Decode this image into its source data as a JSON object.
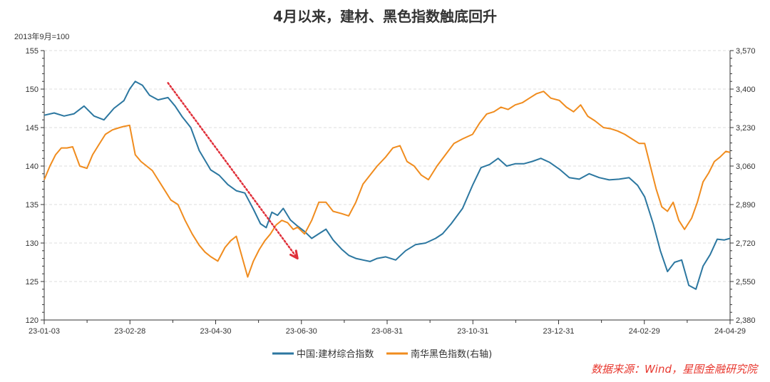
{
  "chart_data": {
    "type": "line",
    "title": "4月以来，建材、黑色指数触底回升",
    "left_axis_unit": "2013年9月=100",
    "source": "数据来源：Wind，星图金融研究院",
    "x_ticks": [
      "23-01-03",
      "23-02-28",
      "23-04-30",
      "23-06-30",
      "23-08-31",
      "23-10-31",
      "23-12-31",
      "24-02-29",
      "24-04-29"
    ],
    "y_left": {
      "min": 120,
      "max": 155,
      "ticks": [
        120,
        125,
        130,
        135,
        140,
        145,
        150,
        155
      ]
    },
    "y_right": {
      "min": 2380,
      "max": 3570,
      "ticks": [
        "2,380",
        "2,550",
        "2,720",
        "2,890",
        "3,060",
        "3,230",
        "3,400",
        "3,570"
      ]
    },
    "grid": "horizontal-dashed",
    "legend_position": "bottom",
    "arrow_annotation": {
      "color": "#e0303a",
      "style": "dotted",
      "from": [
        "2023-03-31",
        150.8
      ],
      "to": [
        "2023-06-30",
        128.0
      ]
    },
    "series": [
      {
        "name": "中国:建材综合指数",
        "axis": "left",
        "color": "#2c77a0",
        "dates": [
          "2023-01-03",
          "2023-01-10",
          "2023-01-17",
          "2023-01-24",
          "2023-01-31",
          "2023-02-07",
          "2023-02-14",
          "2023-02-21",
          "2023-02-28",
          "2023-03-04",
          "2023-03-08",
          "2023-03-13",
          "2023-03-18",
          "2023-03-24",
          "2023-03-31",
          "2023-04-05",
          "2023-04-10",
          "2023-04-16",
          "2023-04-22",
          "2023-04-30",
          "2023-05-06",
          "2023-05-12",
          "2023-05-18",
          "2023-05-24",
          "2023-05-30",
          "2023-06-04",
          "2023-06-08",
          "2023-06-12",
          "2023-06-16",
          "2023-06-20",
          "2023-06-25",
          "2023-06-30",
          "2023-07-05",
          "2023-07-10",
          "2023-07-15",
          "2023-07-20",
          "2023-07-25",
          "2023-07-31",
          "2023-08-05",
          "2023-08-10",
          "2023-08-15",
          "2023-08-20",
          "2023-08-25",
          "2023-08-31",
          "2023-09-07",
          "2023-09-14",
          "2023-09-21",
          "2023-09-28",
          "2023-10-05",
          "2023-10-10",
          "2023-10-16",
          "2023-10-24",
          "2023-10-31",
          "2023-11-06",
          "2023-11-12",
          "2023-11-18",
          "2023-11-24",
          "2023-11-30",
          "2023-12-06",
          "2023-12-12",
          "2023-12-18",
          "2023-12-24",
          "2023-12-31",
          "2024-01-07",
          "2024-01-14",
          "2024-01-21",
          "2024-01-28",
          "2024-02-04",
          "2024-02-11",
          "2024-02-18",
          "2024-02-24",
          "2024-02-29",
          "2024-03-06",
          "2024-03-11",
          "2024-03-16",
          "2024-03-21",
          "2024-03-26",
          "2024-03-31",
          "2024-04-05",
          "2024-04-10",
          "2024-04-15",
          "2024-04-20",
          "2024-04-25",
          "2024-04-29"
        ],
        "values": [
          146.6,
          146.9,
          146.5,
          146.8,
          147.8,
          146.5,
          146.0,
          147.5,
          148.5,
          150.0,
          151.0,
          150.5,
          149.2,
          148.6,
          148.9,
          147.8,
          146.4,
          145.0,
          142.0,
          139.5,
          138.8,
          137.6,
          136.8,
          136.5,
          134.4,
          132.5,
          132.0,
          134.0,
          133.6,
          134.5,
          133.0,
          132.2,
          131.5,
          130.6,
          131.2,
          131.8,
          130.4,
          129.2,
          128.4,
          128.0,
          127.8,
          127.6,
          128.0,
          128.2,
          127.8,
          129.0,
          129.8,
          130.0,
          130.6,
          131.2,
          132.5,
          134.5,
          137.5,
          139.8,
          140.2,
          141.0,
          140.0,
          140.3,
          140.3,
          140.6,
          141.0,
          140.5,
          139.6,
          138.5,
          138.3,
          139.0,
          138.5,
          138.2,
          138.3,
          138.5,
          137.5,
          136.0,
          132.5,
          129.0,
          126.3,
          127.5,
          127.8,
          124.5,
          124.0,
          127.0,
          128.5,
          130.5,
          130.4,
          130.6
        ]
      },
      {
        "name": "南华黑色指数(右轴)",
        "axis": "right",
        "color": "#f08c1e",
        "dates": [
          "2023-01-03",
          "2023-01-07",
          "2023-01-11",
          "2023-01-15",
          "2023-01-19",
          "2023-01-23",
          "2023-01-28",
          "2023-02-02",
          "2023-02-06",
          "2023-02-10",
          "2023-02-15",
          "2023-02-20",
          "2023-02-25",
          "2023-02-28",
          "2023-03-04",
          "2023-03-08",
          "2023-03-12",
          "2023-03-16",
          "2023-03-20",
          "2023-03-24",
          "2023-03-28",
          "2023-04-02",
          "2023-04-07",
          "2023-04-12",
          "2023-04-17",
          "2023-04-22",
          "2023-04-26",
          "2023-04-30",
          "2023-05-05",
          "2023-05-10",
          "2023-05-14",
          "2023-05-18",
          "2023-05-22",
          "2023-05-26",
          "2023-05-30",
          "2023-06-03",
          "2023-06-07",
          "2023-06-11",
          "2023-06-15",
          "2023-06-19",
          "2023-06-23",
          "2023-06-27",
          "2023-06-30",
          "2023-07-05",
          "2023-07-10",
          "2023-07-15",
          "2023-07-20",
          "2023-07-25",
          "2023-07-31",
          "2023-08-05",
          "2023-08-10",
          "2023-08-15",
          "2023-08-20",
          "2023-08-25",
          "2023-08-31",
          "2023-09-05",
          "2023-09-10",
          "2023-09-15",
          "2023-09-20",
          "2023-09-25",
          "2023-09-30",
          "2023-10-06",
          "2023-10-12",
          "2023-10-18",
          "2023-10-24",
          "2023-10-31",
          "2023-11-05",
          "2023-11-10",
          "2023-11-15",
          "2023-11-20",
          "2023-11-25",
          "2023-11-30",
          "2023-12-05",
          "2023-12-10",
          "2023-12-15",
          "2023-12-20",
          "2023-12-25",
          "2023-12-31",
          "2024-01-05",
          "2024-01-10",
          "2024-01-15",
          "2024-01-20",
          "2024-01-25",
          "2024-01-31",
          "2024-02-05",
          "2024-02-10",
          "2024-02-15",
          "2024-02-20",
          "2024-02-25",
          "2024-02-29",
          "2024-03-04",
          "2024-03-08",
          "2024-03-12",
          "2024-03-16",
          "2024-03-20",
          "2024-03-24",
          "2024-03-28",
          "2024-04-02",
          "2024-04-06",
          "2024-04-10",
          "2024-04-14",
          "2024-04-18",
          "2024-04-22",
          "2024-04-26",
          "2024-04-29"
        ],
        "values": [
          3000,
          3060,
          3110,
          3140,
          3140,
          3145,
          3060,
          3050,
          3110,
          3150,
          3200,
          3220,
          3230,
          3235,
          3240,
          3110,
          3080,
          3060,
          3040,
          3000,
          2960,
          2910,
          2890,
          2820,
          2760,
          2710,
          2680,
          2660,
          2640,
          2700,
          2730,
          2750,
          2660,
          2570,
          2640,
          2690,
          2730,
          2760,
          2800,
          2820,
          2810,
          2780,
          2790,
          2760,
          2820,
          2900,
          2900,
          2860,
          2850,
          2840,
          2900,
          2980,
          3020,
          3060,
          3100,
          3140,
          3150,
          3080,
          3060,
          3020,
          3000,
          3060,
          3110,
          3160,
          3180,
          3200,
          3250,
          3290,
          3300,
          3320,
          3310,
          3330,
          3340,
          3360,
          3380,
          3390,
          3360,
          3350,
          3320,
          3300,
          3330,
          3280,
          3260,
          3230,
          3225,
          3215,
          3200,
          3180,
          3160,
          3160,
          3060,
          2960,
          2880,
          2860,
          2900,
          2820,
          2780,
          2830,
          2900,
          2990,
          3030,
          3080,
          3100,
          3125,
          3120
        ]
      }
    ]
  }
}
